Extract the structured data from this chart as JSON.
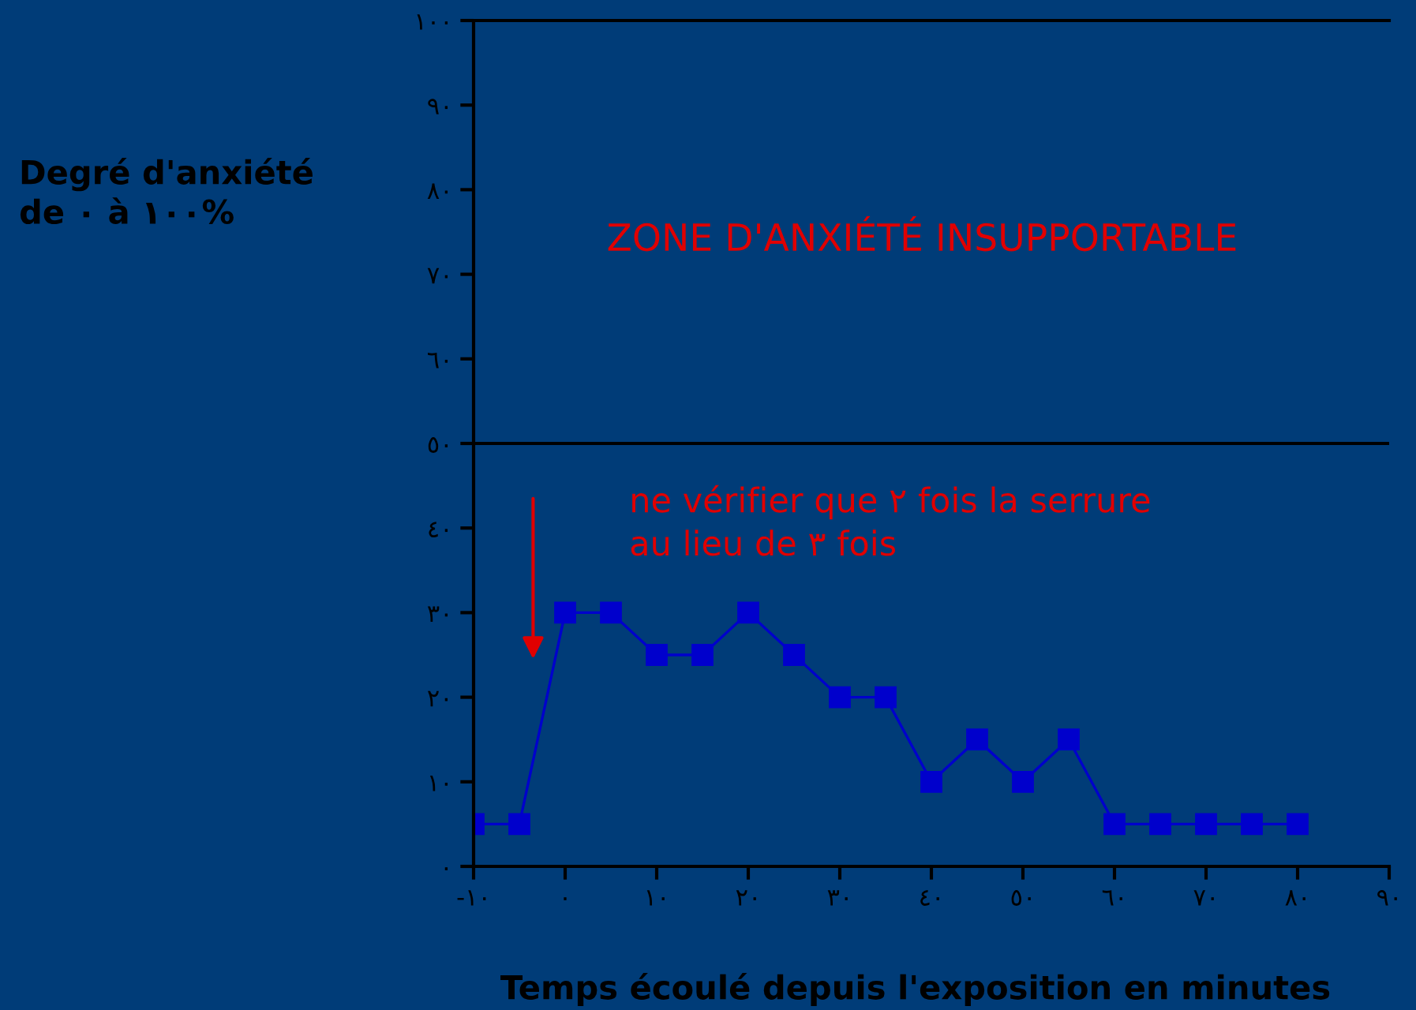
{
  "chart_data": {
    "type": "line",
    "xlabel": "Temps écoulé depuis l'exposition en minutes",
    "ylabel": "Degré d'anxiété\nde ٠ à ١٠٠%",
    "x": [
      -10,
      -5,
      0,
      5,
      10,
      15,
      20,
      25,
      30,
      35,
      40,
      45,
      50,
      55,
      60,
      65,
      70,
      75,
      80
    ],
    "series": [
      {
        "color": "#0000cc",
        "values": [
          5,
          5,
          30,
          30,
          25,
          25,
          30,
          25,
          20,
          20,
          10,
          15,
          10,
          15,
          5,
          5,
          5,
          5,
          5
        ]
      }
    ],
    "marker": "square",
    "line_style": "solid",
    "grid": false,
    "legend": false,
    "xlim": [
      -10,
      90
    ],
    "xticks": [
      {
        "value": -10,
        "label": "-١٠"
      },
      {
        "value": 0,
        "label": "٠"
      },
      {
        "value": 10,
        "label": "١٠"
      },
      {
        "value": 20,
        "label": "٢٠"
      },
      {
        "value": 30,
        "label": "٣٠"
      },
      {
        "value": 40,
        "label": "٤٠"
      },
      {
        "value": 50,
        "label": "٥٠"
      },
      {
        "value": 60,
        "label": "٦٠"
      },
      {
        "value": 70,
        "label": "٧٠"
      },
      {
        "value": 80,
        "label": "٨٠"
      },
      {
        "value": 90,
        "label": "٩٠"
      }
    ],
    "ylim": [
      0,
      100
    ],
    "yticks": [
      {
        "value": 0,
        "label": "٠"
      },
      {
        "value": 10,
        "label": "١٠"
      },
      {
        "value": 20,
        "label": "٢٠"
      },
      {
        "value": 30,
        "label": "٣٠"
      },
      {
        "value": 40,
        "label": "٤٠"
      },
      {
        "value": 50,
        "label": "٥٠"
      },
      {
        "value": 60,
        "label": "٦٠"
      },
      {
        "value": 70,
        "label": "٧٠"
      },
      {
        "value": 80,
        "label": "٨٠"
      },
      {
        "value": 90,
        "label": "٩٠"
      },
      {
        "value": 100,
        "label": "١٠٠"
      }
    ],
    "ref_lines": [
      {
        "axis": "y",
        "value": 50,
        "color": "#000000",
        "line_style": "solid"
      }
    ],
    "annotations": [
      "ZONE D'ANXIÉTÉ INSUPPORTABLE",
      "ne vérifier que ٢ fois la serrure\nau lieu de ٣ fois"
    ]
  }
}
